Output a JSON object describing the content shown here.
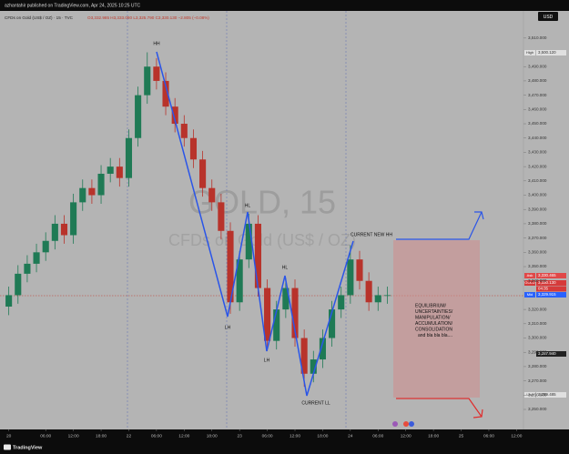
{
  "header": {
    "publisher": "azhantahir published on TradingView.com, Apr 24, 2025 10:25 UTC",
    "currency": "USD",
    "footer": "TradingView"
  },
  "chart_data": {
    "type": "candlestick",
    "symbol_line": "CFDs on Gold (US$ / OZ) · 15 · TVC",
    "ohlc_line": "O3,332.985 H3,333.080 L3,325.790 C3,330.130 −2.805 (−0.08%)",
    "watermark": "GOLD, 15",
    "watermark_sub": "CFDs on Gold (US$ / OZ)",
    "up_color": "#1f7a55",
    "down_color": "#b8332b",
    "x": [
      -2,
      0,
      2,
      4,
      6,
      8,
      10,
      12,
      14,
      16,
      18,
      20,
      22,
      24,
      26,
      28,
      30,
      32,
      34,
      36,
      38,
      40,
      42,
      44,
      46,
      48,
      50,
      52,
      54,
      56,
      58,
      60,
      62,
      64,
      66,
      68,
      70,
      72,
      74,
      76,
      78,
      80
    ],
    "open": [
      3322,
      3330,
      3345,
      3352,
      3360,
      3368,
      3380,
      3372,
      3395,
      3405,
      3400,
      3415,
      3420,
      3412,
      3440,
      3470,
      3490,
      3480,
      3462,
      3450,
      3440,
      3425,
      3405,
      3395,
      3375,
      3325,
      3355,
      3380,
      3335,
      3298,
      3320,
      3335,
      3300,
      3275,
      3285,
      3300,
      3320,
      3330,
      3355,
      3340,
      3325,
      3330
    ],
    "high": [
      3336,
      3351,
      3358,
      3366,
      3374,
      3386,
      3386,
      3401,
      3411,
      3411,
      3421,
      3426,
      3426,
      3446,
      3476,
      3500,
      3496,
      3486,
      3468,
      3456,
      3446,
      3431,
      3411,
      3401,
      3381,
      3361,
      3387,
      3386,
      3341,
      3326,
      3342,
      3341,
      3306,
      3291,
      3306,
      3326,
      3336,
      3365,
      3361,
      3346,
      3336,
      3336
    ],
    "low": [
      3316,
      3324,
      3339,
      3346,
      3354,
      3362,
      3366,
      3366,
      3389,
      3394,
      3394,
      3409,
      3406,
      3406,
      3434,
      3464,
      3474,
      3456,
      3444,
      3434,
      3419,
      3399,
      3389,
      3369,
      3317,
      3319,
      3349,
      3329,
      3291,
      3292,
      3314,
      3294,
      3266,
      3269,
      3279,
      3294,
      3314,
      3324,
      3334,
      3319,
      3319,
      3324
    ],
    "close": [
      3330,
      3345,
      3352,
      3360,
      3368,
      3380,
      3372,
      3395,
      3405,
      3400,
      3415,
      3420,
      3412,
      3440,
      3470,
      3490,
      3480,
      3462,
      3450,
      3440,
      3425,
      3405,
      3395,
      3375,
      3325,
      3355,
      3380,
      3335,
      3298,
      3320,
      3335,
      3300,
      3275,
      3285,
      3300,
      3320,
      3330,
      3355,
      3340,
      3325,
      3330,
      3330
    ],
    "xlim": [
      -3.9,
      109.5
    ],
    "xticks": [
      {
        "value": -2,
        "label": "20"
      },
      {
        "value": 6,
        "label": "06:00"
      },
      {
        "value": 12,
        "label": "12:00"
      },
      {
        "value": 18,
        "label": "18:00"
      },
      {
        "value": 24,
        "label": "22"
      },
      {
        "value": 30,
        "label": "06:00"
      },
      {
        "value": 36,
        "label": "12:00"
      },
      {
        "value": 42,
        "label": "18:00"
      },
      {
        "value": 48,
        "label": "23"
      },
      {
        "value": 54,
        "label": "06:00"
      },
      {
        "value": 60,
        "label": "12:00"
      },
      {
        "value": 66,
        "label": "18:00"
      },
      {
        "value": 72,
        "label": "24"
      },
      {
        "value": 78,
        "label": "06:00"
      },
      {
        "value": 84,
        "label": "12:00"
      },
      {
        "value": 90,
        "label": "18:00"
      },
      {
        "value": 96,
        "label": "25"
      },
      {
        "value": 102,
        "label": "06:00"
      },
      {
        "value": 108,
        "label": "12:00"
      }
    ],
    "ylim": [
      3236,
      3529
    ],
    "yticks": [
      {
        "value": 3510,
        "label": "3,510.000"
      },
      {
        "value": 3490,
        "label": "3,490.000"
      },
      {
        "value": 3480,
        "label": "3,480.000"
      },
      {
        "value": 3470,
        "label": "3,470.000"
      },
      {
        "value": 3460,
        "label": "3,460.000"
      },
      {
        "value": 3450,
        "label": "3,450.000"
      },
      {
        "value": 3440,
        "label": "3,440.000"
      },
      {
        "value": 3430,
        "label": "3,430.000"
      },
      {
        "value": 3420,
        "label": "3,420.000"
      },
      {
        "value": 3410,
        "label": "3,410.000"
      },
      {
        "value": 3400,
        "label": "3,400.000"
      },
      {
        "value": 3390,
        "label": "3,390.000"
      },
      {
        "value": 3380,
        "label": "3,380.000"
      },
      {
        "value": 3370,
        "label": "3,370.000"
      },
      {
        "value": 3360,
        "label": "3,360.000"
      },
      {
        "value": 3350,
        "label": "3,350.000"
      },
      {
        "value": 3340,
        "label": "3,340.000"
      },
      {
        "value": 3320,
        "label": "3,320.000"
      },
      {
        "value": 3310,
        "label": "3,310.000"
      },
      {
        "value": 3300,
        "label": "3,300.000"
      },
      {
        "value": 3290,
        "label": "3,290.000"
      },
      {
        "value": 3280,
        "label": "3,280.000"
      },
      {
        "value": 3270,
        "label": "3,270.000"
      },
      {
        "value": 3260,
        "label": "3,260.000"
      },
      {
        "value": 3250,
        "label": "3,250.000"
      }
    ],
    "price_labels": [
      {
        "name": "High",
        "price": "3,500.120",
        "color": "#e0e0e0"
      },
      {
        "name": "Ask",
        "price": "3,330.465",
        "color": "#e04848"
      },
      {
        "name": "GOLD",
        "price": "3,330.130",
        "color": "#d63a3a"
      },
      {
        "price": "04:35",
        "color": "#d63a3a"
      },
      {
        "name": "Mid",
        "price": "3,329.915",
        "color": "#2962ff"
      },
      {
        "price": "3,287.940",
        "color": "#222222"
      },
      {
        "name": "Low",
        "price": "3,259.485",
        "color": "#e0e0e0"
      }
    ],
    "annotations": [
      "HH",
      "LH",
      "HL",
      "LH",
      "HL",
      "CURRENT LL",
      "CURRENT NEW HH"
    ],
    "box_text": [
      "EQUILIBRIUM/",
      "UNCERTAINTIES/",
      "MANIPULATION/",
      "ACCUMULATION/",
      "CONSOLIDATION",
      "and bla bla bla...."
    ]
  }
}
